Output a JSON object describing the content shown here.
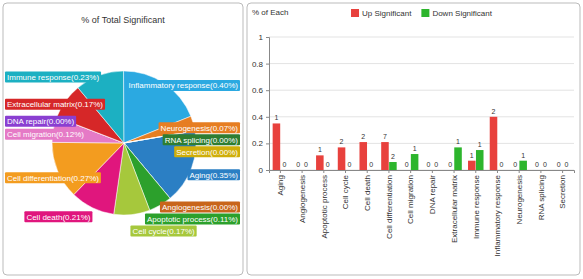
{
  "chart_data": [
    {
      "type": "pie",
      "title": "% of Total Significant",
      "categories": [
        "Aging",
        "Angiogenesis",
        "Apoptotic process",
        "Cell cycle",
        "Cell death",
        "Cell differentiation",
        "Cell migration",
        "DNA repair",
        "Extracellular matrix",
        "Immune response",
        "Inflammatory response",
        "Neurogenesis",
        "RNA splicing",
        "Secretion"
      ],
      "values": [
        0.35,
        0,
        0.11,
        0.17,
        0.21,
        0.27,
        0.12,
        0,
        0.17,
        0.23,
        0.4,
        0.07,
        0,
        0
      ],
      "value_labels": [
        "(0.35%)",
        "(0.00%)",
        "(0.11%)",
        "(0.17%)",
        "(0.21%)",
        "(0.27%)",
        "(0.12%)",
        "(0.00%)",
        "(0.17%)",
        "(0.23%)",
        "(0.40%)",
        "(0.07%)",
        "(0.00%)",
        "(0.00%)"
      ],
      "colors": [
        "#2b7fc4",
        "#c8651b",
        "#2ca02c",
        "#a6c83c",
        "#e0167d",
        "#f39c1f",
        "#e57ac6",
        "#8a3fd1",
        "#d62728",
        "#1cb0c2",
        "#2ba9e1",
        "#e67e22",
        "#2e7d32",
        "#cfae0a"
      ]
    },
    {
      "type": "bar",
      "y_label": "% of Each",
      "categories": [
        "Aging",
        "Angiogenesis",
        "Apoptotic process",
        "Cell cycle",
        "Cell death",
        "Cell differentiation",
        "Cell migration",
        "DNA repair",
        "Extracellular matrix",
        "Immune response",
        "Inflammatory response",
        "Neurogenesis",
        "RNA splicing",
        "Secretion"
      ],
      "series": [
        {
          "name": "Up Significant",
          "color": "#e8413d",
          "values": [
            0.35,
            0,
            0.11,
            0.17,
            0.21,
            0.21,
            0,
            0,
            0,
            0.07,
            0.4,
            0,
            0,
            0
          ],
          "counts": [
            1,
            0,
            1,
            2,
            2,
            7,
            0,
            0,
            0,
            1,
            2,
            0,
            0,
            0
          ]
        },
        {
          "name": "Down Significant",
          "color": "#2db52d",
          "values": [
            0,
            0,
            0,
            0,
            0,
            0.06,
            0.12,
            0,
            0.17,
            0.15,
            0,
            0.07,
            0,
            0
          ],
          "counts": [
            0,
            0,
            0,
            0,
            0,
            2,
            1,
            0,
            1,
            1,
            0,
            1,
            0,
            0
          ]
        }
      ],
      "ylim": [
        0,
        1
      ],
      "yticks": [
        0,
        0.2,
        0.4,
        0.6,
        0.8,
        1
      ],
      "grid": true,
      "legend": "top",
      "data_labels": true
    }
  ]
}
